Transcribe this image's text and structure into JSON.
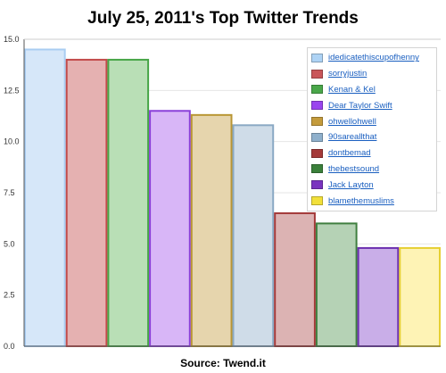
{
  "title": "July 25, 2011's Top Twitter Trends",
  "source": "Source: Twend.it",
  "chart_data": {
    "type": "bar",
    "categories": [
      "idedicatethiscupofhenny",
      "sorryjustin",
      "Kenan & Kel",
      "Dear Taylor Swift",
      "ohwellohwell",
      "90sareallthat",
      "dontbemad",
      "thebestsound",
      "Jack Layton",
      "blamethemuslims"
    ],
    "values": [
      14.5,
      14.0,
      14.0,
      11.5,
      11.3,
      10.8,
      6.5,
      6.0,
      4.8,
      4.8
    ],
    "fill_colors": [
      "#d6e7f9",
      "#e5b1b1",
      "#b9dfb6",
      "#d8b6f7",
      "#e6d5ad",
      "#cfdce8",
      "#dcb3b3",
      "#b5d2b5",
      "#c9aee8",
      "#fef3b5"
    ],
    "stroke_colors": [
      "#a9cdf2",
      "#c24a4a",
      "#47a547",
      "#8a3fd9",
      "#b99635",
      "#8aa9c4",
      "#a33838",
      "#3f7f3f",
      "#6c2fb0",
      "#e6cf32"
    ],
    "legend_colors": [
      "#aed3f5",
      "#c9565a",
      "#4aa74a",
      "#9a45ee",
      "#c49b3c",
      "#8fb0cc",
      "#a53a3a",
      "#3a803a",
      "#7a34bf",
      "#f2e03a"
    ],
    "ylim": [
      0,
      15
    ],
    "yticks": [
      "0.0",
      "2.5",
      "5.0",
      "7.5",
      "10.0",
      "12.5",
      "15.0"
    ],
    "ytick_values": [
      0,
      2.5,
      5,
      7.5,
      10,
      12.5,
      15
    ],
    "xlabel": "",
    "ylabel": "",
    "grid": "horizontal",
    "legend": "top-right"
  }
}
